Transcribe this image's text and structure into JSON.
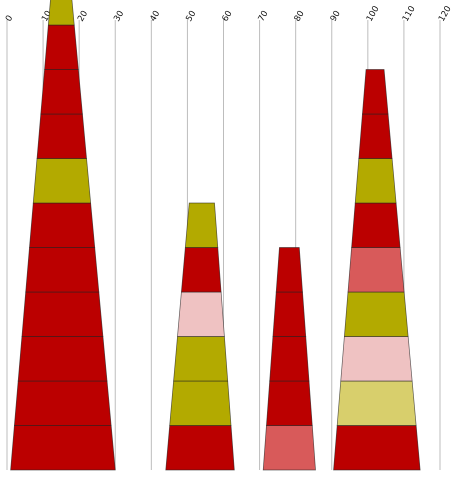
{
  "chart_data": {
    "type": "bar",
    "subtype": "stacked-trapezoid-pyramids",
    "title": "",
    "xlabel": "",
    "ylabel": "",
    "axis": {
      "position": "top",
      "xlim": [
        0,
        120
      ],
      "ticks": [
        0,
        10,
        20,
        30,
        40,
        50,
        60,
        70,
        80,
        90,
        100,
        110,
        120
      ],
      "tick_label_rotation": -60
    },
    "grid": true,
    "legend": false,
    "colors": {
      "dark_red": "#bb0000",
      "olive": "#b3aa00",
      "pink": "#efc2c2",
      "coral": "#d85a5a",
      "khaki": "#d8cf6c"
    },
    "stacks": [
      {
        "base": [
          1,
          30
        ],
        "top": [
          12.5,
          17.5
        ],
        "segments": [
          "dark_red",
          "dark_red",
          "dark_red",
          "dark_red",
          "dark_red",
          "dark_red",
          "olive",
          "dark_red",
          "dark_red",
          "dark_red",
          "olive"
        ]
      },
      {
        "base": [
          44,
          63
        ],
        "top": [
          50.5,
          57.5
        ],
        "segments": [
          "dark_red",
          "olive",
          "olive",
          "pink",
          "dark_red",
          "olive"
        ]
      },
      {
        "base": [
          71,
          85.5
        ],
        "top": [
          75.5,
          81
        ],
        "segments": [
          "coral",
          "dark_red",
          "dark_red",
          "dark_red",
          "dark_red"
        ]
      },
      {
        "base": [
          90.5,
          114.5
        ],
        "top": [
          99.5,
          104.5
        ],
        "segments": [
          "dark_red",
          "khaki",
          "pink",
          "olive",
          "coral",
          "dark_red",
          "olive",
          "dark_red",
          "dark_red"
        ]
      }
    ]
  }
}
